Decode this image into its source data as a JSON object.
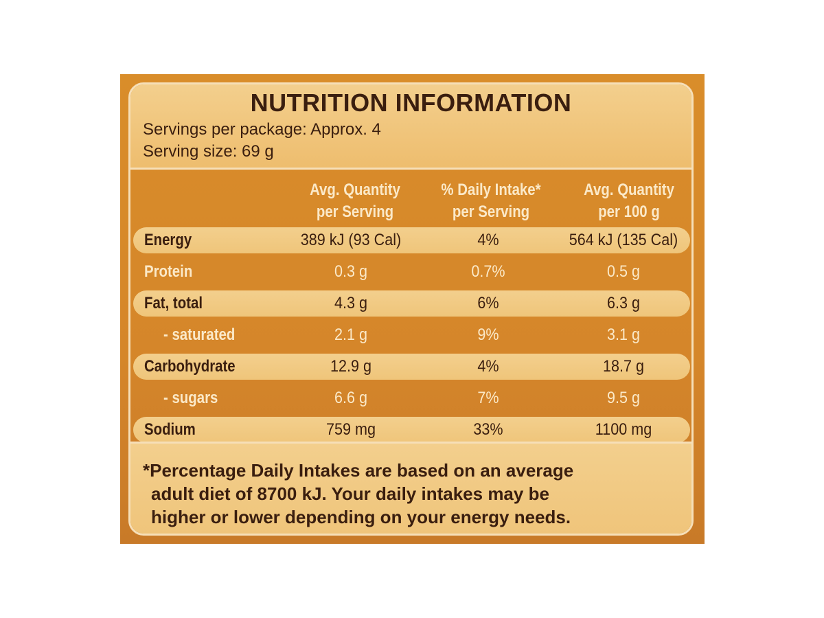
{
  "panel": {
    "title": "NUTRITION INFORMATION",
    "servings_per_package": "Servings per package: Approx. 4",
    "serving_size": "Serving size: 69 g"
  },
  "table": {
    "headers": [
      {
        "line1": "Avg. Quantity",
        "line2": "per Serving"
      },
      {
        "line1": "% Daily Intake*",
        "line2": "per Serving"
      },
      {
        "line1": "Avg. Quantity",
        "line2": "per 100 g"
      }
    ],
    "rows": [
      {
        "name": "Energy",
        "per_serving": "389 kJ (93 Cal)",
        "daily_intake": "4%",
        "per_100g": "564 kJ (135 Cal)"
      },
      {
        "name": "Protein",
        "per_serving": "0.3 g",
        "daily_intake": "0.7%",
        "per_100g": "0.5 g"
      },
      {
        "name": "Fat, total",
        "per_serving": "4.3 g",
        "daily_intake": "6%",
        "per_100g": "6.3 g"
      },
      {
        "name": "- saturated",
        "per_serving": "2.1 g",
        "daily_intake": "9%",
        "per_100g": "3.1 g"
      },
      {
        "name": "Carbohydrate",
        "per_serving": "12.9 g",
        "daily_intake": "4%",
        "per_100g": "18.7 g"
      },
      {
        "name": "- sugars",
        "per_serving": "6.6 g",
        "daily_intake": "7%",
        "per_100g": "9.5 g"
      },
      {
        "name": "Sodium",
        "per_serving": "759 mg",
        "daily_intake": "33%",
        "per_100g": "1100 mg"
      }
    ]
  },
  "footnote": {
    "line1": "*Percentage Daily Intakes are based on an average",
    "line2": "adult diet of 8700 kJ. Your daily intakes may be",
    "line3": "higher or lower depending on your energy needs."
  },
  "colors": {
    "panel_orange": "#d98d2a",
    "light_band": "#f3cf8d",
    "border_cream": "#f6dfb8",
    "dark_text": "#3a1e0f",
    "light_text": "#fbe9c8"
  }
}
